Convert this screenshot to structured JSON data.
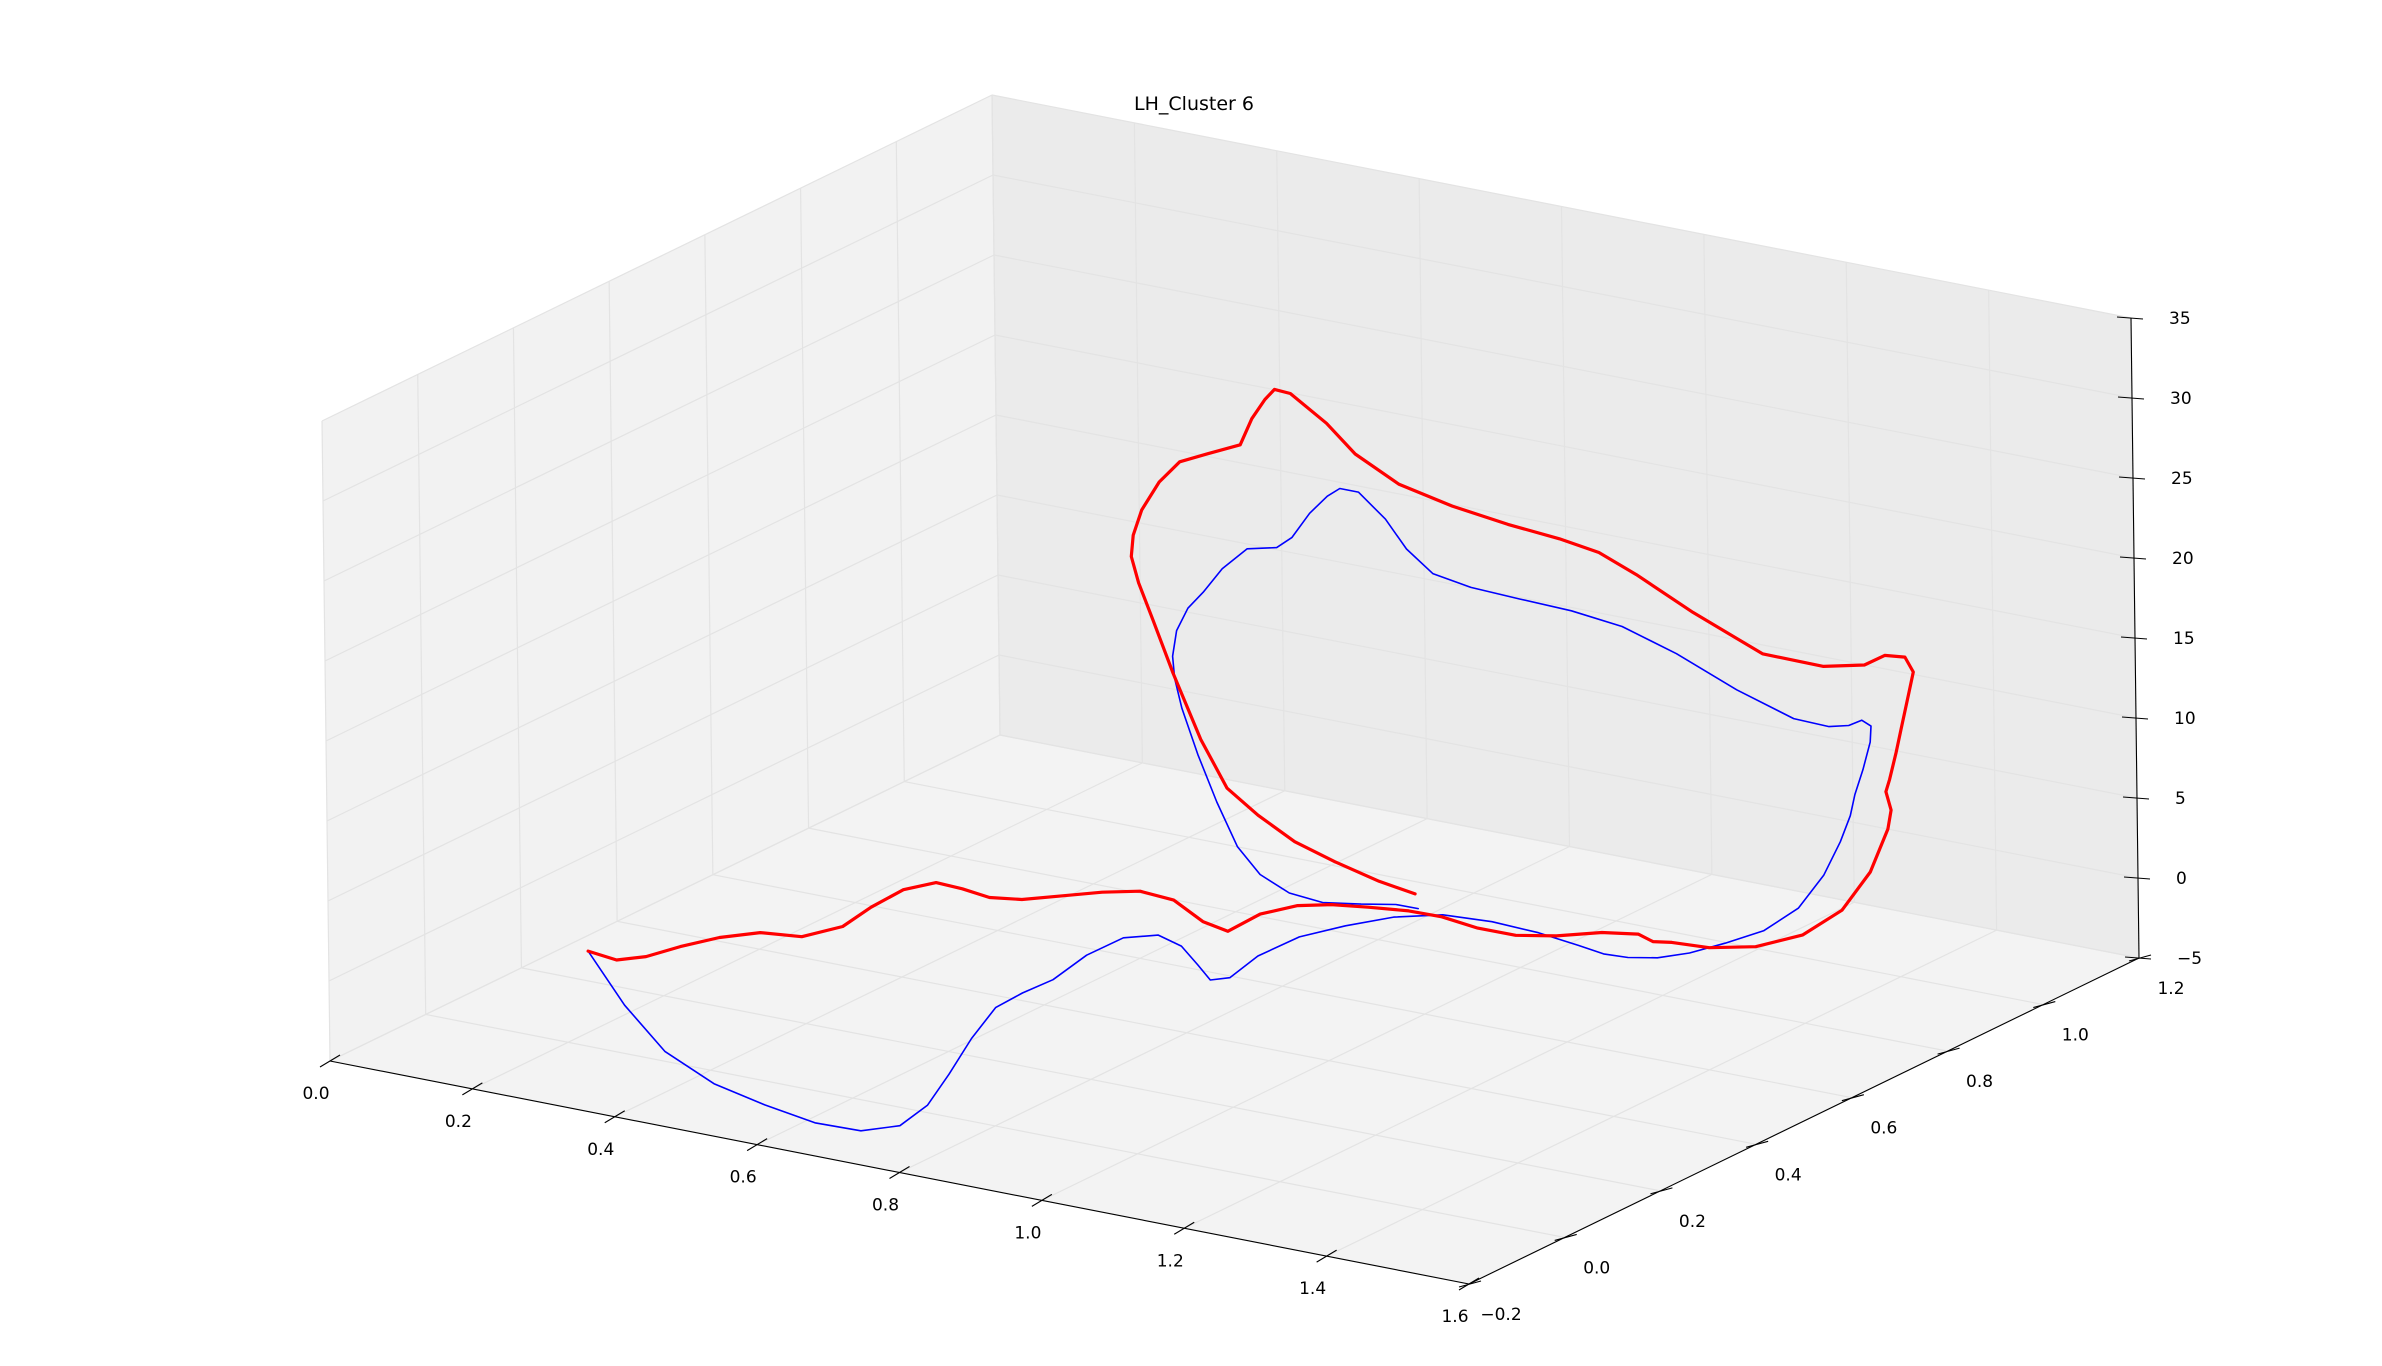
{
  "chart_data": {
    "type": "line",
    "projection": "3d",
    "title": "LH_Cluster 6",
    "xlabel": "",
    "ylabel": "",
    "zlabel": "",
    "grid": true,
    "xlim": [
      0.0,
      1.6
    ],
    "ylim": [
      -0.2,
      1.2
    ],
    "zlim": [
      -5,
      35
    ],
    "x_ticks": [
      "0.0",
      "0.2",
      "0.4",
      "0.6",
      "0.8",
      "1.0",
      "1.2",
      "1.4",
      "1.6"
    ],
    "y_ticks": [
      "−0.2",
      "0.0",
      "0.2",
      "0.4",
      "0.6",
      "0.8",
      "1.0",
      "1.2"
    ],
    "z_ticks": [
      "−5",
      "0",
      "5",
      "10",
      "15",
      "20",
      "25",
      "30",
      "35"
    ],
    "colors": {
      "red_series": "#ff0000",
      "blue_series": "#0000ff"
    },
    "series": [
      {
        "color": "#ff0000",
        "points": [
          [
            0.187,
            0.063,
            -0.33
          ],
          [
            0.221,
            0.072,
            -0.72
          ],
          [
            0.257,
            0.08,
            -0.31
          ],
          [
            0.3,
            0.088,
            0.57
          ],
          [
            0.35,
            0.096,
            1.46
          ],
          [
            0.402,
            0.104,
            2.1
          ],
          [
            0.455,
            0.112,
            2.19
          ],
          [
            0.506,
            0.122,
            3.13
          ],
          [
            0.541,
            0.13,
            4.52
          ],
          [
            0.58,
            0.14,
            5.81
          ],
          [
            0.618,
            0.152,
            6.41
          ],
          [
            0.646,
            0.165,
            6.08
          ],
          [
            0.674,
            0.18,
            5.56
          ],
          [
            0.706,
            0.2,
            5.42
          ],
          [
            0.743,
            0.23,
            5.54
          ],
          [
            0.773,
            0.268,
            5.47
          ],
          [
            0.798,
            0.31,
            5.14
          ],
          [
            0.818,
            0.35,
            4.18
          ],
          [
            0.835,
            0.385,
            2.47
          ],
          [
            0.853,
            0.41,
            1.66
          ],
          [
            0.882,
            0.435,
            2.62
          ],
          [
            0.911,
            0.47,
            2.9
          ],
          [
            0.935,
            0.505,
            2.66
          ],
          [
            0.963,
            0.54,
            2.23
          ],
          [
            0.993,
            0.58,
            1.68
          ],
          [
            1.019,
            0.61,
            1.1
          ],
          [
            1.049,
            0.64,
            0.22
          ],
          [
            1.082,
            0.67,
            -0.38
          ],
          [
            1.119,
            0.7,
            -0.53
          ],
          [
            1.156,
            0.74,
            -0.58
          ],
          [
            1.18,
            0.78,
            -1.05
          ],
          [
            1.187,
            0.8,
            -1.75
          ],
          [
            1.2,
            0.82,
            -1.98
          ],
          [
            1.239,
            0.84,
            -2.26
          ],
          [
            1.291,
            0.86,
            -2.04
          ],
          [
            1.344,
            0.88,
            -1.13
          ],
          [
            1.386,
            0.9,
            0.49
          ],
          [
            1.413,
            0.92,
            2.82
          ],
          [
            1.425,
            0.94,
            5.32
          ],
          [
            1.423,
            0.95,
            6.34
          ],
          [
            1.416,
            0.95,
            7.43
          ],
          [
            1.418,
            0.955,
            8.14
          ],
          [
            1.424,
            0.96,
            9.75
          ],
          [
            1.428,
            0.965,
            11.18
          ],
          [
            1.433,
            0.975,
            13.37
          ],
          [
            1.433,
            0.985,
            14.55
          ],
          [
            1.418,
            0.99,
            15.28
          ],
          [
            1.393,
            0.985,
            15.24
          ],
          [
            1.371,
            0.975,
            14.59
          ],
          [
            1.327,
            0.955,
            14.41
          ],
          [
            1.265,
            0.92,
            15.17
          ],
          [
            1.195,
            0.88,
            17.73
          ],
          [
            1.143,
            0.84,
            20.22
          ],
          [
            1.111,
            0.81,
            21.76
          ],
          [
            1.076,
            0.78,
            22.75
          ],
          [
            1.031,
            0.74,
            23.84
          ],
          [
            0.98,
            0.7,
            25.12
          ],
          [
            0.932,
            0.66,
            26.66
          ],
          [
            0.895,
            0.625,
            28.73
          ],
          [
            0.872,
            0.6,
            30.81
          ],
          [
            0.842,
            0.57,
            32.85
          ],
          [
            0.83,
            0.555,
            33.22
          ],
          [
            0.823,
            0.545,
            32.67
          ],
          [
            0.811,
            0.535,
            31.51
          ],
          [
            0.801,
            0.525,
            29.94
          ],
          [
            0.771,
            0.5,
            29.47
          ],
          [
            0.746,
            0.48,
            29.05
          ],
          [
            0.727,
            0.465,
            27.84
          ],
          [
            0.712,
            0.45,
            26.18
          ],
          [
            0.703,
            0.445,
            24.59
          ],
          [
            0.7,
            0.445,
            23.24
          ],
          [
            0.703,
            0.455,
            21.48
          ],
          [
            0.712,
            0.47,
            19.06
          ],
          [
            0.723,
            0.495,
            15.4
          ],
          [
            0.737,
            0.53,
            10.89
          ],
          [
            0.746,
            0.57,
            7.34
          ],
          [
            0.762,
            0.61,
            5.21
          ],
          [
            0.786,
            0.65,
            3.18
          ],
          [
            0.815,
            0.69,
            1.6
          ],
          [
            0.85,
            0.73,
            0.1
          ],
          [
            0.88,
            0.76,
            -0.86
          ]
        ]
      },
      {
        "color": "#0000ff",
        "points": [
          [
            0.187,
            0.063,
            -0.33
          ],
          [
            0.243,
            0.055,
            -3.11
          ],
          [
            0.306,
            0.045,
            -5.31
          ],
          [
            0.381,
            0.035,
            -6.52
          ],
          [
            0.459,
            0.025,
            -7.02
          ],
          [
            0.536,
            0.015,
            -7.32
          ],
          [
            0.604,
            0.01,
            -7.16
          ],
          [
            0.659,
            0.01,
            -6.36
          ],
          [
            0.695,
            0.015,
            -4.83
          ],
          [
            0.719,
            0.025,
            -2.83
          ],
          [
            0.741,
            0.04,
            -0.63
          ],
          [
            0.762,
            0.06,
            1.19
          ],
          [
            0.783,
            0.085,
            1.92
          ],
          [
            0.806,
            0.115,
            2.52
          ],
          [
            0.83,
            0.15,
            3.75
          ],
          [
            0.855,
            0.19,
            4.47
          ],
          [
            0.877,
            0.23,
            4.25
          ],
          [
            0.889,
            0.26,
            3.23
          ],
          [
            0.895,
            0.285,
            1.74
          ],
          [
            0.902,
            0.3,
            0.64
          ],
          [
            0.916,
            0.32,
            0.62
          ],
          [
            0.939,
            0.345,
            1.81
          ],
          [
            0.974,
            0.38,
            2.8
          ],
          [
            1.012,
            0.42,
            3.24
          ],
          [
            1.053,
            0.46,
            3.56
          ],
          [
            1.095,
            0.5,
            3.49
          ],
          [
            1.137,
            0.54,
            2.84
          ],
          [
            1.175,
            0.58,
            1.9
          ],
          [
            1.204,
            0.62,
            0.78
          ],
          [
            1.219,
            0.65,
            -0.06
          ],
          [
            1.233,
            0.68,
            -0.6
          ],
          [
            1.254,
            0.71,
            -0.87
          ],
          [
            1.279,
            0.74,
            -0.79
          ],
          [
            1.309,
            0.77,
            -0.35
          ],
          [
            1.343,
            0.8,
            0.28
          ],
          [
            1.372,
            0.83,
            1.51
          ],
          [
            1.388,
            0.86,
            3.27
          ],
          [
            1.395,
            0.885,
            5.06
          ],
          [
            1.396,
            0.905,
            6.41
          ],
          [
            1.396,
            0.915,
            7.59
          ],
          [
            1.401,
            0.925,
            9.03
          ],
          [
            1.405,
            0.935,
            10.65
          ],
          [
            1.403,
            0.94,
            11.56
          ],
          [
            1.39,
            0.94,
            11.82
          ],
          [
            1.375,
            0.935,
            11.43
          ],
          [
            1.354,
            0.925,
            11.32
          ],
          [
            1.318,
            0.905,
            11.8
          ],
          [
            1.262,
            0.87,
            13.62
          ],
          [
            1.205,
            0.83,
            15.96
          ],
          [
            1.156,
            0.79,
            17.82
          ],
          [
            1.112,
            0.75,
            19.0
          ],
          [
            1.067,
            0.71,
            19.92
          ],
          [
            1.025,
            0.67,
            20.87
          ],
          [
            0.992,
            0.64,
            21.88
          ],
          [
            0.969,
            0.62,
            23.51
          ],
          [
            0.95,
            0.605,
            25.43
          ],
          [
            0.926,
            0.585,
            27.2
          ],
          [
            0.91,
            0.57,
            27.5
          ],
          [
            0.899,
            0.56,
            27.07
          ],
          [
            0.884,
            0.545,
            26.09
          ],
          [
            0.869,
            0.53,
            24.67
          ],
          [
            0.854,
            0.52,
            24.05
          ],
          [
            0.826,
            0.5,
            24.02
          ],
          [
            0.804,
            0.48,
            22.87
          ],
          [
            0.787,
            0.465,
            21.48
          ],
          [
            0.772,
            0.455,
            20.49
          ],
          [
            0.759,
            0.45,
            19.05
          ],
          [
            0.753,
            0.45,
            17.4
          ],
          [
            0.752,
            0.455,
            15.94
          ],
          [
            0.755,
            0.465,
            13.94
          ],
          [
            0.763,
            0.485,
            10.84
          ],
          [
            0.772,
            0.51,
            7.58
          ],
          [
            0.78,
            0.54,
            4.41
          ],
          [
            0.791,
            0.57,
            2.34
          ],
          [
            0.808,
            0.605,
            0.82
          ],
          [
            0.831,
            0.64,
            -0.08
          ],
          [
            0.858,
            0.68,
            -0.53
          ],
          [
            0.88,
            0.72,
            -0.94
          ],
          [
            0.891,
            0.75,
            -1.54
          ]
        ]
      }
    ]
  }
}
